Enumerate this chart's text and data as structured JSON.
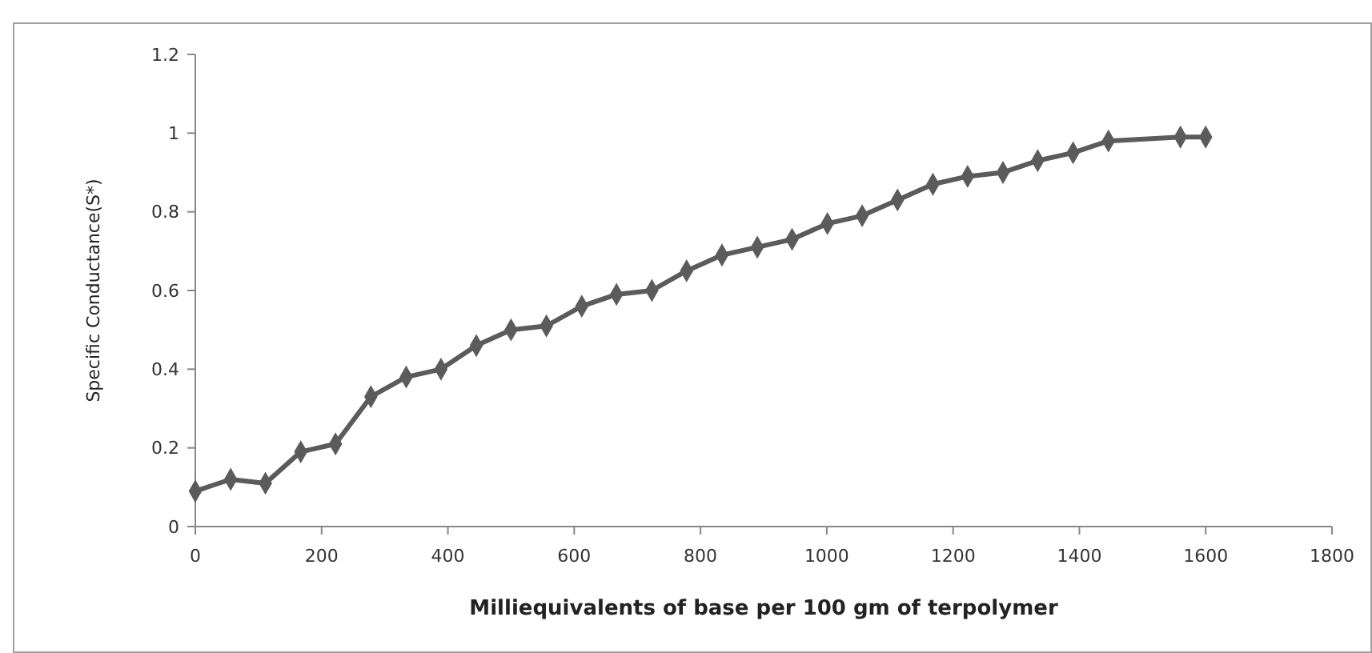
{
  "chart_data": {
    "type": "line",
    "xlabel": "Milliequivalents of base per 100 gm of terpolymer",
    "ylabel": "Specific Conductance(S*)",
    "x": [
      0,
      56,
      111,
      167,
      222,
      278,
      334,
      389,
      445,
      500,
      556,
      612,
      667,
      723,
      778,
      834,
      890,
      945,
      1001,
      1056,
      1112,
      1168,
      1223,
      1279,
      1334,
      1390,
      1446,
      1560,
      1600
    ],
    "series": [
      {
        "color": "#5b5b5b",
        "values": [
          0.09,
          0.12,
          0.11,
          0.19,
          0.21,
          0.33,
          0.38,
          0.4,
          0.46,
          0.5,
          0.51,
          0.56,
          0.59,
          0.6,
          0.65,
          0.69,
          0.71,
          0.73,
          0.77,
          0.79,
          0.83,
          0.87,
          0.89,
          0.9,
          0.93,
          0.95,
          0.98,
          0.99,
          0.99
        ]
      }
    ],
    "xlim": [
      0,
      1800
    ],
    "xticks": [
      0,
      200,
      400,
      600,
      800,
      1000,
      1200,
      1400,
      1600,
      1800
    ],
    "ylim": [
      0,
      1.2
    ],
    "yticks": [
      0,
      0.2,
      0.4,
      0.6,
      0.8,
      1,
      1.2
    ],
    "marker": "diamond",
    "line_style": "solid",
    "grid": false
  }
}
